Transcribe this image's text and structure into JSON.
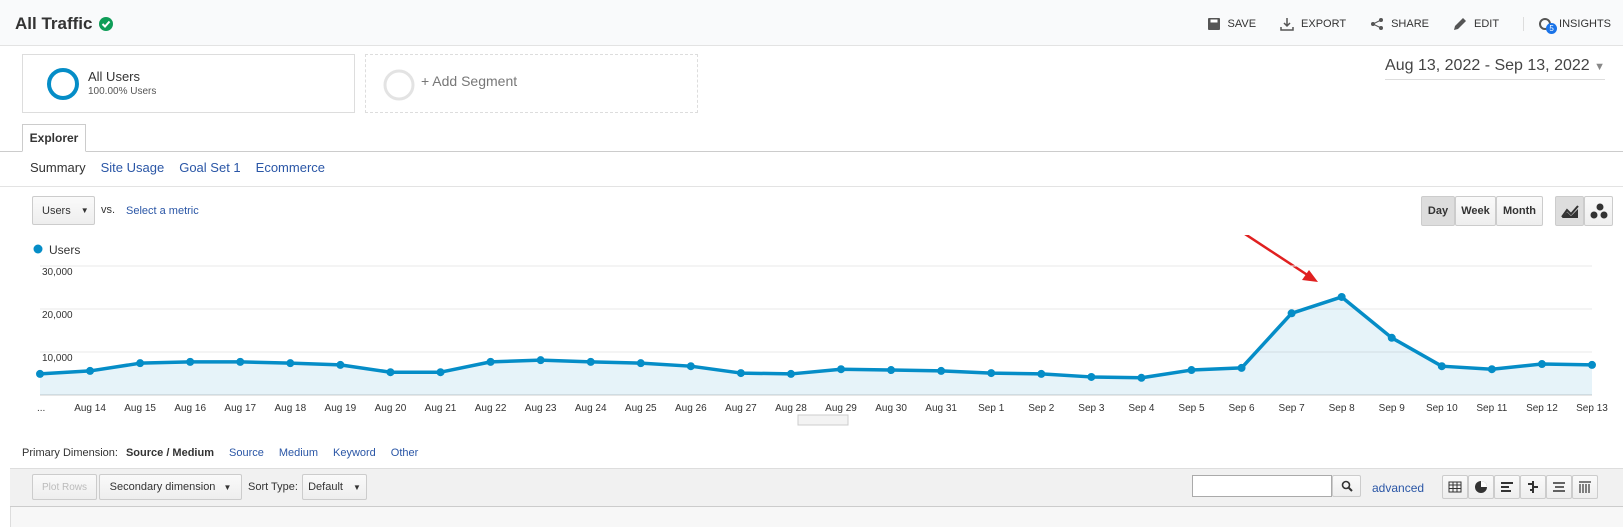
{
  "header": {
    "title": "All Traffic",
    "actions": [
      "SAVE",
      "EXPORT",
      "SHARE",
      "EDIT",
      "INSIGHTS"
    ],
    "insights_badge": "5"
  },
  "segments": [
    {
      "name": "All Users",
      "detail": "100.00% Users"
    },
    {
      "name": "+ Add Segment"
    }
  ],
  "date_range": "Aug 13, 2022 - Sep 13, 2022",
  "tabs": [
    "Explorer"
  ],
  "subtabs": [
    "Summary",
    "Site Usage",
    "Goal Set 1",
    "Ecommerce"
  ],
  "metric_selector": {
    "metric": "Users",
    "vs": "vs.",
    "select": "Select a metric"
  },
  "period_buttons": [
    "Day",
    "Week",
    "Month"
  ],
  "chart_data": {
    "type": "line",
    "categories": [
      "...",
      "Aug 14",
      "Aug 15",
      "Aug 16",
      "Aug 17",
      "Aug 18",
      "Aug 19",
      "Aug 20",
      "Aug 21",
      "Aug 22",
      "Aug 23",
      "Aug 24",
      "Aug 25",
      "Aug 26",
      "Aug 27",
      "Aug 28",
      "Aug 29",
      "Aug 30",
      "Aug 31",
      "Sep 1",
      "Sep 2",
      "Sep 3",
      "Sep 4",
      "Sep 5",
      "Sep 6",
      "Sep 7",
      "Sep 8",
      "Sep 9",
      "Sep 10",
      "Sep 11",
      "Sep 12",
      "Sep 13"
    ],
    "series": [
      {
        "name": "Users",
        "color": "#058dc7",
        "values": [
          4900,
          5600,
          7400,
          7700,
          7700,
          7400,
          7000,
          5300,
          5300,
          7700,
          8100,
          7700,
          7400,
          6700,
          5100,
          4900,
          6000,
          5800,
          5600,
          5100,
          4900,
          4200,
          4000,
          5800,
          6300,
          19000,
          22800,
          13300,
          6700,
          6000,
          7200,
          7000
        ]
      }
    ],
    "ylim": [
      0,
      30000
    ],
    "yticks": [
      {
        "value": 10000,
        "label": "10,000"
      },
      {
        "value": 20000,
        "label": "20,000"
      },
      {
        "value": 30000,
        "label": "30,000"
      }
    ],
    "grid": true
  },
  "dimensions": {
    "label": "Primary Dimension:",
    "options": [
      "Source / Medium",
      "Source",
      "Medium",
      "Keyword",
      "Other"
    ]
  },
  "table_toolbar": {
    "plot_rows": "Plot Rows",
    "secondary": "Secondary dimension",
    "sort_label": "Sort Type:",
    "sort": "Default",
    "advanced": "advanced"
  }
}
